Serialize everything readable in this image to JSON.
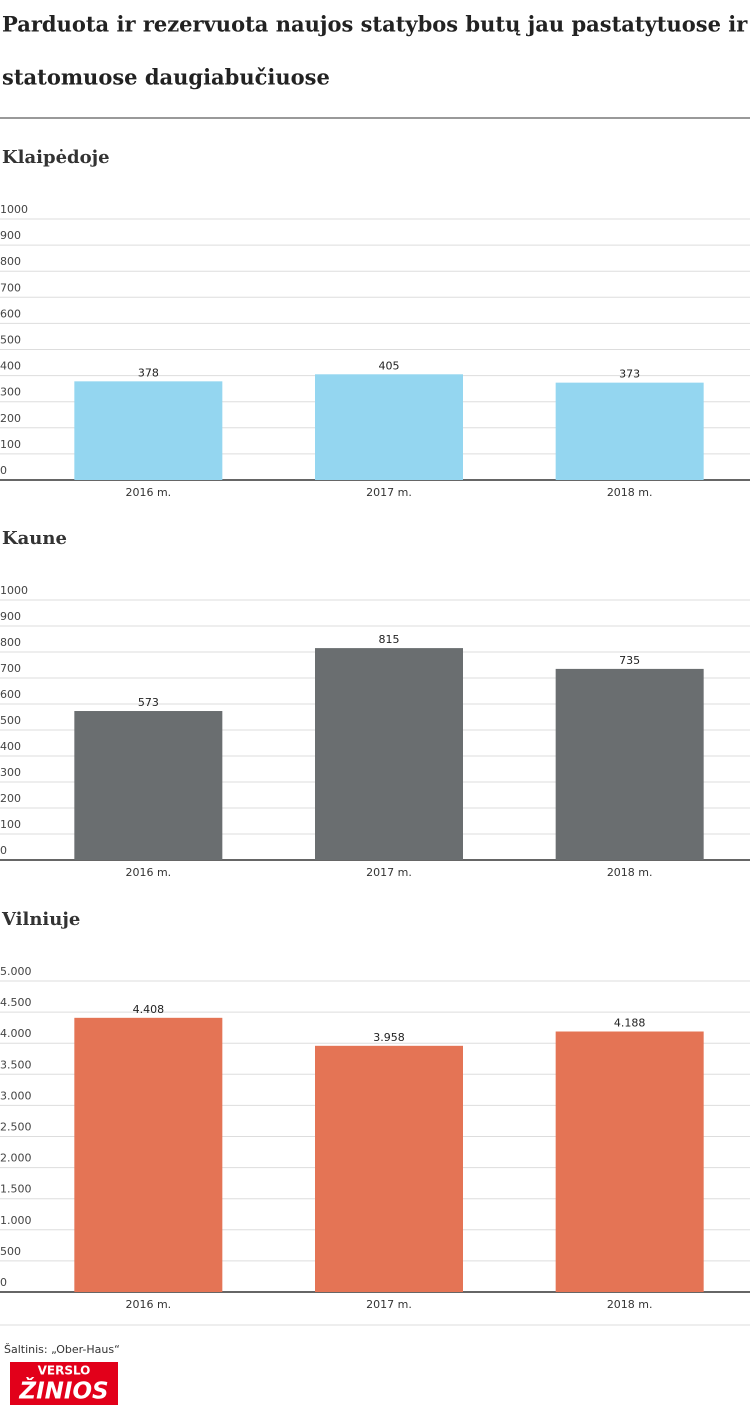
{
  "title_lines": [
    "Parduota ir rezervuota naujos statybos butų jau pastatytuose ir",
    "statomuose daugiabučiuose"
  ],
  "chart_data": [
    {
      "type": "bar",
      "title": "Klaipėdoje",
      "categories": [
        "2016 m.",
        "2017 m.",
        "2018 m."
      ],
      "values": [
        378,
        405,
        373
      ],
      "color": "#94d6f0",
      "ylim": [
        0,
        1000
      ],
      "yticks": [
        0,
        100,
        200,
        300,
        400,
        500,
        600,
        700,
        800,
        900,
        1000
      ],
      "grid": true
    },
    {
      "type": "bar",
      "title": "Kaune",
      "categories": [
        "2016 m.",
        "2017 m.",
        "2018 m."
      ],
      "values": [
        573,
        815,
        735
      ],
      "color": "#6a6e70",
      "ylim": [
        0,
        1000
      ],
      "yticks": [
        0,
        100,
        200,
        300,
        400,
        500,
        600,
        700,
        800,
        900,
        1000
      ],
      "grid": true
    },
    {
      "type": "bar",
      "title": "Vilniuje",
      "categories": [
        "2016 m.",
        "2017 m.",
        "2018 m."
      ],
      "values": [
        4408,
        3958,
        4188
      ],
      "value_labels": [
        "4.408",
        "3.958",
        "4.188"
      ],
      "color": "#e47455",
      "ylim": [
        0,
        5000
      ],
      "yticks": [
        0,
        500,
        {
          "value": 1000,
          "label": "1.000"
        },
        {
          "value": 1500,
          "label": "1.500"
        },
        {
          "value": 2000,
          "label": "2.000"
        },
        {
          "value": 2500,
          "label": "2.500"
        },
        {
          "value": 3000,
          "label": "3.000"
        },
        {
          "value": 3500,
          "label": "3.500"
        },
        {
          "value": 4000,
          "label": "4.000"
        },
        {
          "value": 4500,
          "label": "4.500"
        },
        {
          "value": 5000,
          "label": "5.000"
        }
      ],
      "grid": true
    }
  ],
  "source": "Šaltinis: „Ober-Haus“",
  "logo": {
    "top": "VERSLO",
    "bottom": "ŽINIOS"
  }
}
